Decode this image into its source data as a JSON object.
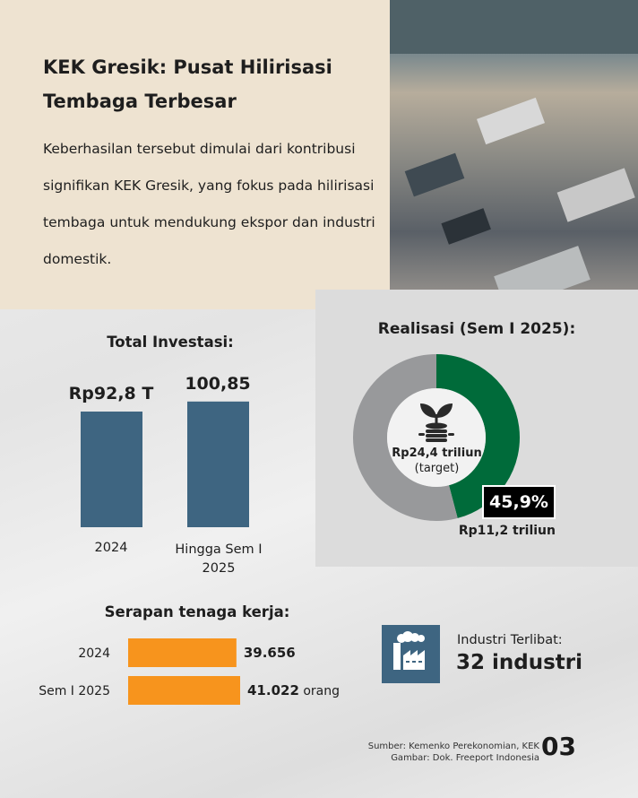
{
  "intro": {
    "title": "KEK Gresik: Pusat Hilirisasi Tembaga Terbesar",
    "description": "Keberhasilan tersebut dimulai dari kontribusi signifikan KEK Gresik, yang fokus pada hilirisasi tembaga untuk mendukung ekspor dan industri domestik."
  },
  "colors": {
    "beige": "#eee3d1",
    "bar_blue": "#3e6581",
    "green": "#006b3a",
    "ring_gray": "#98999b",
    "orange": "#f7941d"
  },
  "chart_data": [
    {
      "type": "bar",
      "title": "Total Investasi:",
      "categories": [
        "2024",
        "Hingga Sem I 2025"
      ],
      "values": [
        92.8,
        100.85
      ],
      "data_labels": [
        "Rp92,8 T",
        "100,85"
      ],
      "color": "#3e6581"
    },
    {
      "type": "pie",
      "title": "Realisasi (Sem I 2025):",
      "center_value": "Rp24,4 triliun",
      "center_note": "(target)",
      "center_icon": "money-plant-icon",
      "slices": [
        {
          "label": "Rp11,2 triliun",
          "value": 45.9,
          "display": "45,9%",
          "color": "#006b3a"
        },
        {
          "value": 54.1,
          "color": "#98999b"
        }
      ]
    },
    {
      "type": "bar",
      "orientation": "horizontal",
      "title": "Serapan tenaga kerja:",
      "categories": [
        "2024",
        "Sem I 2025"
      ],
      "values": [
        39656,
        41022
      ],
      "data_labels": [
        "39.656",
        "41.022"
      ],
      "unit": "orang",
      "color": "#f7941d"
    }
  ],
  "industry": {
    "icon": "factory-icon",
    "label": "Industri Terlibat:",
    "value": "32 industri"
  },
  "footer": {
    "source": "Sumber: Kemenko Perekonomian, KEK",
    "image_credit": "Gambar: Dok. Freeport Indonesia",
    "page": "03"
  }
}
